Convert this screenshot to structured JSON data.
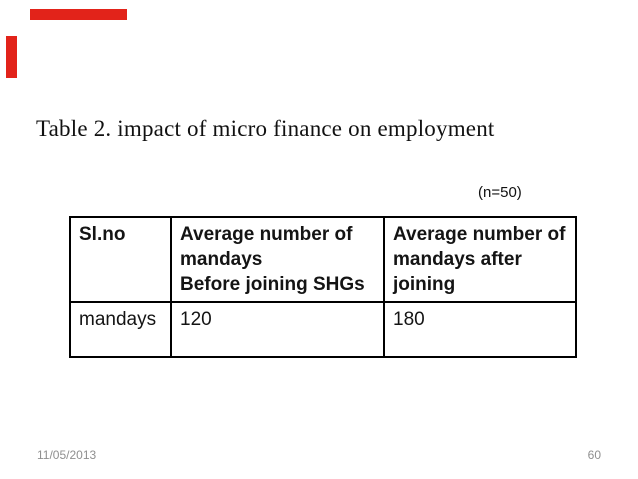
{
  "slide": {
    "title": "Table 2. impact of micro finance on employment",
    "sample_note": "(n=50)",
    "accent_color": "#e2231a",
    "footer": {
      "date": "11/05/2013",
      "page_number": "60"
    }
  },
  "chart_data": {
    "type": "table",
    "title": "Table 2. impact of micro finance on employment",
    "note": "(n=50)",
    "columns": [
      {
        "key": "sl_no",
        "header_lines": [
          "Sl.no"
        ]
      },
      {
        "key": "before",
        "header_lines": [
          "Average number of mandays",
          "Before joining SHGs"
        ]
      },
      {
        "key": "after",
        "header_lines": [
          "Average number of mandays after joining"
        ]
      }
    ],
    "rows": [
      {
        "cells": [
          "mandays",
          "120",
          "180"
        ]
      }
    ]
  }
}
